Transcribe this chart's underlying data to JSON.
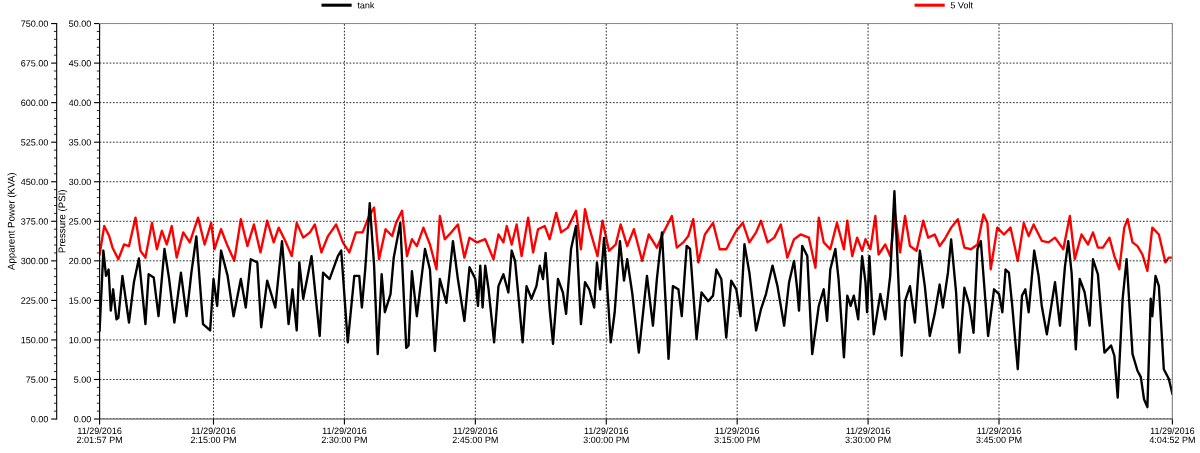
{
  "chart_data": {
    "type": "line",
    "ylabel": "Pressure (PSI)",
    "y2label": "Apparent Power (KVA)",
    "xlim": [
      "2016-11-29T14:01:57",
      "2016-11-29T16:04:52"
    ],
    "xticks": [
      {
        "value": "2016-11-29T14:01:57",
        "label": "11/29/2016\n2:01:57 PM"
      },
      {
        "value": "2016-11-29T14:15",
        "label": "11/29/2016\n2:15:00 PM"
      },
      {
        "value": "2016-11-29T14:30",
        "label": "11/29/2016\n2:30:00 PM"
      },
      {
        "value": "2016-11-29T14:45",
        "label": "11/29/2016\n2:45:00 PM"
      },
      {
        "value": "2016-11-29T15:00",
        "label": "11/29/2016\n3:00:00 PM"
      },
      {
        "value": "2016-11-29T15:15",
        "label": "11/29/2016\n3:15:00 PM"
      },
      {
        "value": "2016-11-29T15:30",
        "label": "11/29/2016\n3:30:00 PM"
      },
      {
        "value": "2016-11-29T15:45",
        "label": "11/29/2016\n3:45:00 PM"
      },
      {
        "value": "2016-11-29T16:04:52",
        "label": "11/29/2016\n4:04:52 PM"
      }
    ],
    "ylim": [
      0,
      50
    ],
    "yticks": [
      {
        "value": 0,
        "label": "0.00"
      },
      {
        "value": 5,
        "label": "5.00"
      },
      {
        "value": 10,
        "label": "10.00"
      },
      {
        "value": 15,
        "label": "15.00"
      },
      {
        "value": 20,
        "label": "20.00"
      },
      {
        "value": 25,
        "label": "25.00"
      },
      {
        "value": 30,
        "label": "30.00"
      },
      {
        "value": 35,
        "label": "35.00"
      },
      {
        "value": 40,
        "label": "40.00"
      },
      {
        "value": 45,
        "label": "45.00"
      },
      {
        "value": 50,
        "label": "50.00"
      }
    ],
    "y2lim": [
      0,
      750
    ],
    "y2ticks": [
      {
        "value": 0,
        "label": "0.00"
      },
      {
        "value": 75,
        "label": "75.00"
      },
      {
        "value": 150,
        "label": "150.00"
      },
      {
        "value": 225,
        "label": "225.00"
      },
      {
        "value": 300,
        "label": "300.00"
      },
      {
        "value": 375,
        "label": "375.00"
      },
      {
        "value": 450,
        "label": "450.00"
      },
      {
        "value": 525,
        "label": "525.00"
      },
      {
        "value": 600,
        "label": "600.00"
      },
      {
        "value": 675,
        "label": "675.00"
      },
      {
        "value": 750,
        "label": "750.00"
      }
    ],
    "grid": true,
    "legend": "top",
    "series": [
      {
        "name": "tank",
        "color": "#000000",
        "x": [
          "2016-11-29T14:01:57",
          "2016-11-29T14:02:23",
          "2016-11-29T14:02:41",
          "2016-11-29T14:02:59",
          "2016-11-29T14:03:14",
          "2016-11-29T14:03:30",
          "2016-11-29T14:03:53",
          "2016-11-29T14:04:06",
          "2016-11-29T14:04:34",
          "2016-11-29T14:05:19",
          "2016-11-29T14:05:53",
          "2016-11-29T14:06:27",
          "2016-11-29T14:07:12",
          "2016-11-29T14:07:34",
          "2016-11-29T14:08:09",
          "2016-11-29T14:08:42",
          "2016-11-29T14:09:23",
          "2016-11-29T14:09:55",
          "2016-11-29T14:10:31",
          "2016-11-29T14:11:16",
          "2016-11-29T14:11:55",
          "2016-11-29T14:12:28",
          "2016-11-29T14:13:02",
          "2016-11-29T14:13:48",
          "2016-11-29T14:14:37",
          "2016-11-29T14:15:00",
          "2016-11-29T14:15:25",
          "2016-11-29T14:15:52",
          "2016-11-29T14:16:37",
          "2016-11-29T14:17:18",
          "2016-11-29T14:18:08",
          "2016-11-29T14:18:42",
          "2016-11-29T14:19:16",
          "2016-11-29T14:20:01",
          "2016-11-29T14:20:28",
          "2016-11-29T14:21:09",
          "2016-11-29T14:22:05",
          "2016-11-29T14:22:51",
          "2016-11-29T14:23:36",
          "2016-11-29T14:24:03",
          "2016-11-29T14:24:32",
          "2016-11-29T14:24:50",
          "2016-11-29T14:25:17",
          "2016-11-29T14:26:14",
          "2016-11-29T14:27:10",
          "2016-11-29T14:27:33",
          "2016-11-29T14:28:18",
          "2016-11-29T14:29:15",
          "2016-11-29T14:29:38",
          "2016-11-29T14:30:23",
          "2016-11-29T14:31:08",
          "2016-11-29T14:31:42",
          "2016-11-29T14:32:00",
          "2016-11-29T14:32:23",
          "2016-11-29T14:32:54",
          "2016-11-29T14:33:24",
          "2016-11-29T14:33:49",
          "2016-11-29T14:34:16",
          "2016-11-29T14:34:38",
          "2016-11-29T14:35:17",
          "2016-11-29T14:35:39",
          "2016-11-29T14:36:24",
          "2016-11-29T14:37:05",
          "2016-11-29T14:37:21",
          "2016-11-29T14:37:44",
          "2016-11-29T14:38:18",
          "2016-11-29T14:39:14",
          "2016-11-29T14:39:48",
          "2016-11-29T14:40:22",
          "2016-11-29T14:40:56",
          "2016-11-29T14:41:41",
          "2016-11-29T14:42:26",
          "2016-11-29T14:43:00",
          "2016-11-29T14:43:45",
          "2016-11-29T14:44:20",
          "2016-11-29T14:45:00",
          "2016-11-29T14:45:18",
          "2016-11-29T14:45:34",
          "2016-11-29T14:45:50",
          "2016-11-29T14:46:08",
          "2016-11-29T14:46:31",
          "2016-11-29T14:47:09",
          "2016-11-29T14:47:39",
          "2016-11-29T14:48:13",
          "2016-11-29T14:48:47",
          "2016-11-29T14:49:10",
          "2016-11-29T14:49:33",
          "2016-11-29T14:49:55",
          "2016-11-29T14:50:25",
          "2016-11-29T14:50:52",
          "2016-11-29T14:51:26",
          "2016-11-29T14:52:00",
          "2016-11-29T14:52:23",
          "2016-11-29T14:52:45",
          "2016-11-29T14:53:03",
          "2016-11-29T14:53:31",
          "2016-11-29T14:53:54",
          "2016-11-29T14:54:28",
          "2016-11-29T14:55:02",
          "2016-11-29T14:55:24",
          "2016-11-29T14:55:58",
          "2016-11-29T14:56:32",
          "2016-11-29T14:57:06",
          "2016-11-29T14:57:34",
          "2016-11-29T14:58:03",
          "2016-11-29T14:58:37",
          "2016-11-29T14:58:56",
          "2016-11-29T14:59:18",
          "2016-11-29T14:59:45",
          "2016-11-29T15:00:31",
          "2016-11-29T15:00:58",
          "2016-11-29T15:01:34",
          "2016-11-29T15:02:02",
          "2016-11-29T15:02:24",
          "2016-11-29T15:02:58",
          "2016-11-29T15:03:44",
          "2016-11-29T15:04:40",
          "2016-11-29T15:05:21",
          "2016-11-29T15:05:48",
          "2016-11-29T15:06:23",
          "2016-11-29T15:07:08",
          "2016-11-29T15:07:38",
          "2016-11-29T15:08:16",
          "2016-11-29T15:08:39",
          "2016-11-29T15:09:13",
          "2016-11-29T15:09:36",
          "2016-11-29T15:10:21",
          "2016-11-29T15:10:55",
          "2016-11-29T15:11:41",
          "2016-11-29T15:12:14",
          "2016-11-29T15:12:37",
          "2016-11-29T15:13:11",
          "2016-11-29T15:13:45",
          "2016-11-29T15:14:19",
          "2016-11-29T15:14:54",
          "2016-11-29T15:15:23",
          "2016-11-29T15:15:50",
          "2016-11-29T15:16:24",
          "2016-11-29T15:17:10",
          "2016-11-29T15:17:44",
          "2016-11-29T15:18:18",
          "2016-11-29T15:19:03",
          "2016-11-29T15:19:37",
          "2016-11-29T15:20:23",
          "2016-11-29T15:20:57",
          "2016-11-29T15:21:31",
          "2016-11-29T15:21:53",
          "2016-11-29T15:22:05",
          "2016-11-29T15:22:27",
          "2016-11-29T15:23:02",
          "2016-11-29T15:23:36",
          "2016-11-29T15:24:21",
          "2016-11-29T15:24:55",
          "2016-11-29T15:25:18",
          "2016-11-29T15:25:40",
          "2016-11-29T15:26:15",
          "2016-11-29T15:26:37",
          "2016-11-29T15:27:14",
          "2016-11-29T15:27:37",
          "2016-11-29T15:28:00",
          "2016-11-29T15:28:22",
          "2016-11-29T15:28:52",
          "2016-11-29T15:29:19",
          "2016-11-29T15:29:42",
          "2016-11-29T15:29:53",
          "2016-11-29T15:30:09",
          "2016-11-29T15:30:39",
          "2016-11-29T15:31:24",
          "2016-11-29T15:31:58",
          "2016-11-29T15:32:32",
          "2016-11-29T15:33:01",
          "2016-11-29T15:33:28",
          "2016-11-29T15:33:51",
          "2016-11-29T15:34:14",
          "2016-11-29T15:34:48",
          "2016-11-29T15:35:22",
          "2016-11-29T15:35:56",
          "2016-11-29T15:36:30",
          "2016-11-29T15:37:04",
          "2016-11-29T15:37:38",
          "2016-11-29T15:38:12",
          "2016-11-29T15:38:34",
          "2016-11-29T15:39:09",
          "2016-11-29T15:39:31",
          "2016-11-29T15:40:05",
          "2016-11-29T15:40:28",
          "2016-11-29T15:41:02",
          "2016-11-29T15:41:36",
          "2016-11-29T15:42:05",
          "2016-11-29T15:42:32",
          "2016-11-29T15:42:55",
          "2016-11-29T15:43:45",
          "2016-11-29T15:44:26",
          "2016-11-29T15:45:00",
          "2016-11-29T15:45:23",
          "2016-11-29T15:45:45",
          "2016-11-29T15:46:08",
          "2016-11-29T15:46:31",
          "2016-11-29T15:47:09",
          "2016-11-29T15:47:38",
          "2016-11-29T15:48:01",
          "2016-11-29T15:48:24",
          "2016-11-29T15:49:02",
          "2016-11-29T15:49:32",
          "2016-11-29T15:49:54",
          "2016-11-29T15:50:29",
          "2016-11-29T15:51:25",
          "2016-11-29T15:51:59",
          "2016-11-29T15:52:33",
          "2016-11-29T15:52:56",
          "2016-11-29T15:53:19",
          "2016-11-29T15:53:48",
          "2016-11-29T15:54:15",
          "2016-11-29T15:54:49",
          "2016-11-29T15:55:23",
          "2016-11-29T15:55:46",
          "2016-11-29T15:56:20",
          "2016-11-29T15:56:43",
          "2016-11-29T15:57:05",
          "2016-11-29T15:57:50",
          "2016-11-29T15:58:13",
          "2016-11-29T15:58:36",
          "2016-11-29T15:59:10",
          "2016-11-29T15:59:37",
          "2016-11-29T16:00:18",
          "2016-11-29T16:00:52",
          "2016-11-29T16:01:15",
          "2016-11-29T16:01:37",
          "2016-11-29T16:02:00",
          "2016-11-29T16:02:23",
          "2016-11-29T16:02:34",
          "2016-11-29T16:02:56",
          "2016-11-29T16:03:19",
          "2016-11-29T16:03:53",
          "2016-11-29T16:04:27",
          "2016-11-29T16:04:52"
        ],
        "values": [
          11.2,
          21.3,
          18.1,
          18.9,
          13.7,
          16.4,
          12.6,
          12.8,
          18.1,
          12.2,
          17.3,
          20.3,
          12.0,
          18.3,
          17.9,
          13.0,
          21.5,
          17.7,
          12.2,
          18.5,
          13.0,
          18.5,
          23.1,
          12.0,
          11.2,
          17.7,
          14.3,
          21.3,
          18.1,
          13.0,
          17.7,
          14.1,
          20.2,
          19.8,
          11.6,
          17.5,
          14.1,
          22.5,
          12.0,
          16.4,
          11.2,
          19.8,
          15.2,
          20.6,
          10.5,
          18.5,
          17.7,
          20.6,
          21.3,
          9.7,
          18.1,
          18.1,
          14.1,
          18.9,
          27.3,
          19.4,
          8.2,
          18.3,
          13.5,
          15.8,
          20.4,
          24.8,
          9.0,
          9.3,
          18.7,
          13.0,
          21.5,
          18.9,
          8.6,
          17.7,
          14.7,
          22.5,
          17.7,
          12.4,
          19.2,
          17.7,
          14.3,
          19.4,
          14.1,
          19.4,
          16.4,
          9.7,
          16.8,
          18.3,
          16.0,
          21.3,
          20.0,
          15.8,
          9.7,
          16.8,
          15.2,
          16.8,
          19.4,
          17.7,
          21.0,
          13.9,
          9.5,
          17.7,
          16.0,
          13.3,
          21.5,
          24.4,
          12.0,
          17.3,
          16.4,
          14.1,
          19.8,
          16.4,
          22.9,
          9.7,
          13.5,
          22.5,
          17.5,
          20.2,
          16.0,
          8.4,
          18.1,
          11.8,
          17.7,
          23.6,
          7.6,
          16.8,
          16.4,
          13.0,
          21.9,
          21.5,
          10.1,
          16.0,
          14.9,
          15.6,
          18.9,
          17.7,
          10.3,
          17.5,
          16.4,
          13.0,
          22.1,
          18.5,
          11.2,
          13.9,
          15.8,
          19.4,
          16.8,
          11.8,
          17.3,
          20.0,
          16.4,
          13.7,
          21.9,
          20.6,
          8.2,
          14.3,
          16.4,
          12.4,
          18.9,
          21.5,
          17.7,
          7.8,
          15.6,
          14.3,
          15.6,
          12.6,
          20.6,
          17.3,
          13.5,
          20.6,
          10.7,
          15.8,
          12.6,
          18.1,
          28.8,
          17.7,
          8.0,
          14.9,
          16.8,
          12.2,
          21.3,
          16.8,
          10.5,
          13.3,
          17.0,
          14.1,
          18.5,
          22.7,
          16.0,
          8.4,
          16.6,
          14.5,
          10.9,
          21.5,
          22.5,
          10.5,
          16.4,
          15.8,
          13.5,
          18.9,
          18.5,
          14.3,
          6.3,
          15.6,
          16.4,
          13.5,
          21.3,
          18.1,
          14.3,
          10.7,
          17.3,
          11.8,
          19.2,
          22.5,
          18.5,
          8.8,
          17.7,
          16.0,
          11.8,
          20.2,
          18.3,
          13.0,
          8.4,
          9.3,
          8.0,
          2.7,
          15.2,
          20.2,
          8.2,
          6.1,
          5.3,
          2.5,
          1.5,
          15.2,
          13.0,
          18.1,
          16.8,
          6.3,
          5.1,
          3.2
        ]
      },
      {
        "name": "5 Volt",
        "color": "#ff0000",
        "axis": "y2",
        "x": [
          "2016-11-29T14:01:57",
          "2016-11-29T14:02:29",
          "2016-11-29T14:03:03",
          "2016-11-29T14:03:26",
          "2016-11-29T14:04:06",
          "2016-11-29T14:04:45",
          "2016-11-29T14:05:19",
          "2016-11-29T14:06:04",
          "2016-11-29T14:06:38",
          "2016-11-29T14:07:12",
          "2016-11-29T14:07:57",
          "2016-11-29T14:08:31",
          "2016-11-29T14:09:05",
          "2016-11-29T14:09:39",
          "2016-11-29T14:10:13",
          "2016-11-29T14:10:47",
          "2016-11-29T14:11:32",
          "2016-11-29T14:12:17",
          "2016-11-29T14:13:14",
          "2016-11-29T14:13:59",
          "2016-11-29T14:14:44",
          "2016-11-29T14:15:07",
          "2016-11-29T14:15:52",
          "2016-11-29T14:16:37",
          "2016-11-29T14:17:23",
          "2016-11-29T14:18:08",
          "2016-11-29T14:18:53",
          "2016-11-29T14:19:38",
          "2016-11-29T14:20:23",
          "2016-11-29T14:21:09",
          "2016-11-29T14:21:54",
          "2016-11-29T14:22:28",
          "2016-11-29T14:23:13",
          "2016-11-29T14:23:58",
          "2016-11-29T14:24:32",
          "2016-11-29T14:25:17",
          "2016-11-29T14:26:03",
          "2016-11-29T14:26:37",
          "2016-11-29T14:27:22",
          "2016-11-29T14:28:07",
          "2016-11-29T14:29:03",
          "2016-11-29T14:29:49",
          "2016-11-29T14:30:34",
          "2016-11-29T14:31:19",
          "2016-11-29T14:32:05",
          "2016-11-29T14:32:50",
          "2016-11-29T14:33:24",
          "2016-11-29T14:33:58",
          "2016-11-29T14:34:43",
          "2016-11-29T14:35:28",
          "2016-11-29T14:35:55",
          "2016-11-29T14:36:36",
          "2016-11-29T14:37:10",
          "2016-11-29T14:37:44",
          "2016-11-29T14:38:18",
          "2016-11-29T14:39:03",
          "2016-11-29T14:39:48",
          "2016-11-29T14:40:33",
          "2016-11-29T14:40:56",
          "2016-11-29T14:41:30",
          "2016-11-29T14:42:15",
          "2016-11-29T14:43:00",
          "2016-11-29T14:43:45",
          "2016-11-29T14:44:20",
          "2016-11-29T14:45:12",
          "2016-11-29T14:46:08",
          "2016-11-29T14:47:05",
          "2016-11-29T14:47:39",
          "2016-11-29T14:48:13",
          "2016-11-29T14:48:36",
          "2016-11-29T14:49:10",
          "2016-11-29T14:49:44",
          "2016-11-29T14:50:18",
          "2016-11-29T14:51:03",
          "2016-11-29T14:51:37",
          "2016-11-29T14:52:11",
          "2016-11-29T14:52:57",
          "2016-11-29T14:53:31",
          "2016-11-29T14:54:16",
          "2016-11-29T14:54:50",
          "2016-11-29T14:55:36",
          "2016-11-29T14:56:32",
          "2016-11-29T14:57:06",
          "2016-11-29T14:57:34",
          "2016-11-29T14:58:03",
          "2016-11-29T14:59:00",
          "2016-11-29T14:59:34",
          "2016-11-29T15:00:19",
          "2016-11-29T15:01:05",
          "2016-11-29T15:01:39",
          "2016-11-29T15:02:24",
          "2016-11-29T15:03:10",
          "2016-11-29T15:04:07",
          "2016-11-29T15:04:52",
          "2016-11-29T15:05:48",
          "2016-11-29T15:06:34",
          "2016-11-29T15:07:31",
          "2016-11-29T15:08:05",
          "2016-11-29T15:08:50",
          "2016-11-29T15:09:24",
          "2016-11-29T15:09:58",
          "2016-11-29T15:10:33",
          "2016-11-29T15:11:18",
          "2016-11-29T15:12:14",
          "2016-11-29T15:13:00",
          "2016-11-29T15:13:45",
          "2016-11-29T15:14:54",
          "2016-11-29T15:15:39",
          "2016-11-29T15:16:24",
          "2016-11-29T15:17:10",
          "2016-11-29T15:17:44",
          "2016-11-29T15:18:29",
          "2016-11-29T15:19:15",
          "2016-11-29T15:20:00",
          "2016-11-29T15:20:45",
          "2016-11-29T15:21:31",
          "2016-11-29T15:22:16",
          "2016-11-29T15:23:13",
          "2016-11-29T15:23:58",
          "2016-11-29T15:24:21",
          "2016-11-29T15:24:55",
          "2016-11-29T15:25:40",
          "2016-11-29T15:26:26",
          "2016-11-29T15:27:14",
          "2016-11-29T15:27:37",
          "2016-11-29T15:28:11",
          "2016-11-29T15:28:45",
          "2016-11-29T15:29:19",
          "2016-11-29T15:29:42",
          "2016-11-29T15:30:16",
          "2016-11-29T15:30:50",
          "2016-11-29T15:31:12",
          "2016-11-29T15:31:58",
          "2016-11-29T15:32:32",
          "2016-11-29T15:33:06",
          "2016-11-29T15:33:40",
          "2016-11-29T15:34:14",
          "2016-11-29T15:34:48",
          "2016-11-29T15:35:33",
          "2016-11-29T15:36:19",
          "2016-11-29T15:36:53",
          "2016-11-29T15:37:38",
          "2016-11-29T15:38:12",
          "2016-11-29T15:38:46",
          "2016-11-29T15:39:31",
          "2016-11-29T15:40:17",
          "2016-11-29T15:41:02",
          "2016-11-29T15:41:47",
          "2016-11-29T15:42:32",
          "2016-11-29T15:43:13",
          "2016-11-29T15:43:40",
          "2016-11-29T15:44:03",
          "2016-11-29T15:44:48",
          "2016-11-29T15:45:34",
          "2016-11-29T15:46:19",
          "2016-11-29T15:47:09",
          "2016-11-29T15:47:50",
          "2016-11-29T15:48:24",
          "2016-11-29T15:48:58",
          "2016-11-29T15:49:54",
          "2016-11-29T15:50:40",
          "2016-11-29T15:51:25",
          "2016-11-29T15:52:22",
          "2016-11-29T15:53:07",
          "2016-11-29T15:53:41",
          "2016-11-29T15:54:27",
          "2016-11-29T15:55:12",
          "2016-11-29T15:55:46",
          "2016-11-29T15:56:20",
          "2016-11-29T15:56:54",
          "2016-11-29T15:57:39",
          "2016-11-29T15:58:13",
          "2016-11-29T15:58:47",
          "2016-11-29T15:59:21",
          "2016-11-29T15:59:44",
          "2016-11-29T16:00:18",
          "2016-11-29T16:00:52",
          "2016-11-29T16:01:26",
          "2016-11-29T16:02:00",
          "2016-11-29T16:02:34",
          "2016-11-29T16:03:19",
          "2016-11-29T16:04:04",
          "2016-11-29T16:04:27",
          "2016-11-29T16:04:52"
        ],
        "values": [
          312,
          366,
          347,
          325,
          303,
          331,
          328,
          382,
          319,
          306,
          372,
          322,
          357,
          331,
          366,
          306,
          354,
          335,
          382,
          331,
          372,
          322,
          360,
          328,
          300,
          379,
          328,
          369,
          316,
          376,
          335,
          363,
          338,
          309,
          372,
          344,
          354,
          369,
          316,
          347,
          369,
          335,
          316,
          354,
          354,
          385,
          401,
          303,
          360,
          347,
          372,
          395,
          309,
          341,
          328,
          363,
          331,
          284,
          385,
          341,
          354,
          369,
          306,
          344,
          335,
          341,
          303,
          350,
          335,
          366,
          331,
          369,
          309,
          382,
          316,
          360,
          366,
          341,
          391,
          354,
          363,
          395,
          322,
          398,
          363,
          309,
          376,
          319,
          331,
          369,
          328,
          360,
          300,
          350,
          325,
          354,
          385,
          325,
          335,
          347,
          379,
          297,
          350,
          372,
          322,
          322,
          357,
          372,
          335,
          354,
          376,
          335,
          344,
          369,
          306,
          341,
          350,
          344,
          287,
          382,
          335,
          322,
          372,
          322,
          376,
          309,
          344,
          319,
          341,
          322,
          385,
          312,
          331,
          309,
          388,
          316,
          385,
          328,
          319,
          376,
          344,
          350,
          328,
          341,
          363,
          379,
          325,
          322,
          331,
          388,
          372,
          284,
          363,
          350,
          363,
          300,
          372,
          347,
          369,
          338,
          335,
          344,
          322,
          385,
          303,
          350,
          331,
          354,
          325,
          325,
          344,
          309,
          284,
          363,
          379,
          335,
          328,
          312,
          281,
          363,
          350,
          297,
          306,
          306
        ]
      }
    ]
  }
}
